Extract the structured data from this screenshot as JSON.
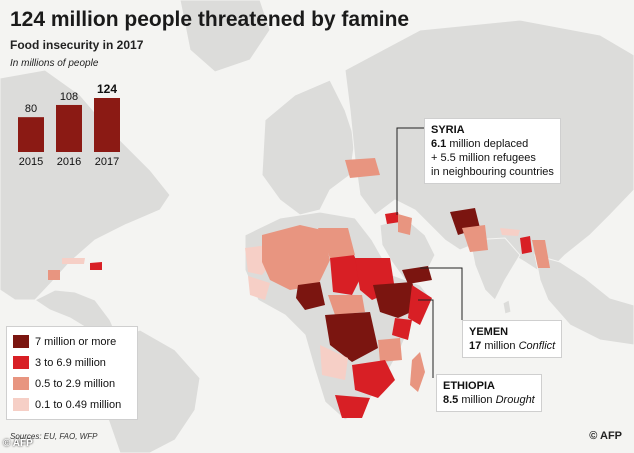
{
  "title": "124 million people threatened by famine",
  "subtitle": "Food insecurity in 2017",
  "unit_note": "In millions of people",
  "chart_data": [
    {
      "type": "bar",
      "title": "Food insecurity",
      "categories": [
        "2015",
        "2016",
        "2017"
      ],
      "values": [
        80,
        108,
        124
      ],
      "value_labels": [
        "80",
        "108",
        "124"
      ],
      "ylabel": "In millions of people",
      "ylim": [
        0,
        124
      ]
    },
    {
      "type": "choropleth",
      "title": "Food insecurity in 2017 by country",
      "legend": [
        {
          "label": "7 million  or more",
          "color": "#7b1510"
        },
        {
          "label": "3 to 6.9 million",
          "color": "#d81f25"
        },
        {
          "label": "0.5 to 2.9 million",
          "color": "#e89580"
        },
        {
          "label": "0.1 to 0.49 million",
          "color": "#f6cfc6"
        }
      ]
    }
  ],
  "callouts": {
    "syria": {
      "name": "SYRIA",
      "number": "6.1",
      "line1": "million deplaced",
      "line2": "+ 5.5 million refugees",
      "line3": "in neighbouring countries"
    },
    "yemen": {
      "name": "YEMEN",
      "number": "17",
      "unit": "million",
      "cause": "Conflict"
    },
    "ethiopia": {
      "name": "ETHIOPIA",
      "number": "8.5",
      "unit": "million",
      "cause": "Drought"
    }
  },
  "colors": {
    "land": "#dcdcda",
    "sea": "#f4f4f2",
    "level4": "#7b1510",
    "level3": "#d81f25",
    "level2": "#e89580",
    "level1": "#f6cfc6"
  },
  "sources": "Sources: EU, FAO, WFP",
  "credit_left": "© AFP",
  "credit_right": "AFP"
}
